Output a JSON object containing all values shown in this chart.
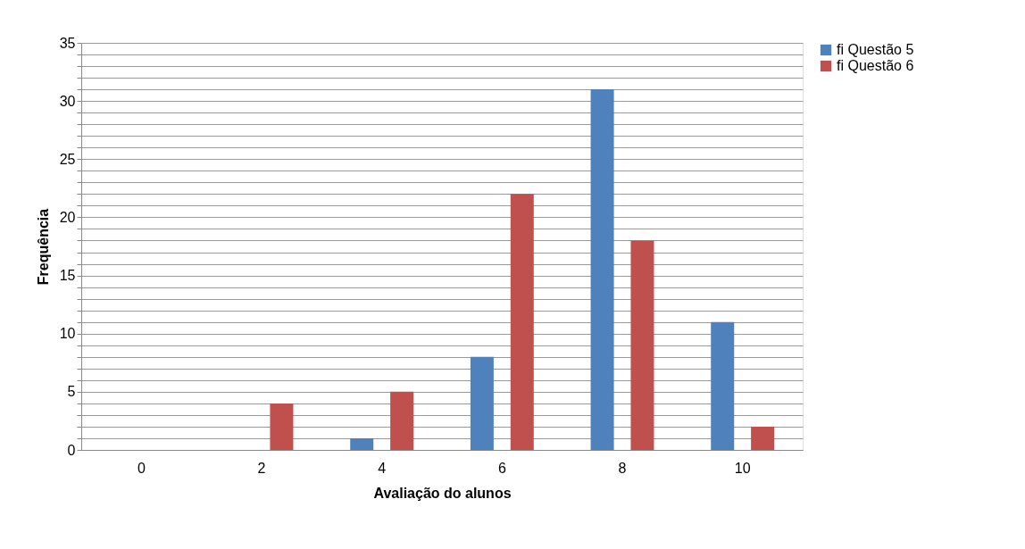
{
  "chart_data": {
    "type": "bar",
    "xlabel": "Avaliação do alunos",
    "ylabel": "Frequência",
    "categories": [
      "0",
      "2",
      "4",
      "6",
      "8",
      "10"
    ],
    "series": [
      {
        "name": "fi Questão 5",
        "color": "#4f81bd",
        "values": [
          0,
          0,
          1,
          8,
          31,
          11
        ]
      },
      {
        "name": "fi Questão 6",
        "color": "#c0504d",
        "values": [
          0,
          4,
          5,
          22,
          18,
          2
        ]
      }
    ],
    "ylim": [
      0,
      35
    ],
    "yticks": [
      0,
      {
        "value": 1,
        "label": null
      },
      {
        "value": 2,
        "label": null
      },
      {
        "value": 3,
        "label": null
      },
      {
        "value": 4,
        "label": null
      },
      5,
      {
        "value": 6,
        "label": null
      },
      {
        "value": 7,
        "label": null
      },
      {
        "value": 8,
        "label": null
      },
      {
        "value": 9,
        "label": null
      },
      10,
      {
        "value": 11,
        "label": null
      },
      {
        "value": 12,
        "label": null
      },
      {
        "value": 13,
        "label": null
      },
      {
        "value": 14,
        "label": null
      },
      15,
      {
        "value": 16,
        "label": null
      },
      {
        "value": 17,
        "label": null
      },
      {
        "value": 18,
        "label": null
      },
      {
        "value": 19,
        "label": null
      },
      20,
      {
        "value": 21,
        "label": null
      },
      {
        "value": 22,
        "label": null
      },
      {
        "value": 23,
        "label": null
      },
      {
        "value": 24,
        "label": null
      },
      25,
      {
        "value": 26,
        "label": null
      },
      {
        "value": 27,
        "label": null
      },
      {
        "value": 28,
        "label": null
      },
      {
        "value": 29,
        "label": null
      },
      30,
      {
        "value": 31,
        "label": null
      },
      {
        "value": 32,
        "label": null
      },
      {
        "value": 33,
        "label": null
      },
      {
        "value": 34,
        "label": null
      },
      35
    ],
    "grid": "y",
    "legend": "right"
  }
}
